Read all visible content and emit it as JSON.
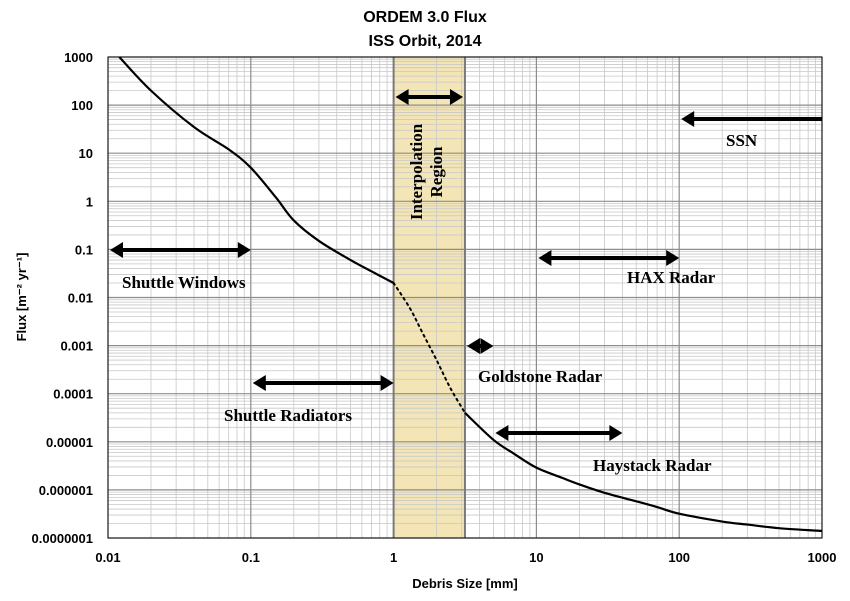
{
  "chart_data": {
    "type": "line",
    "title": "ORDEM 3.0 Flux",
    "subtitle": "ISS Orbit, 2014",
    "xlabel": "Debris Size [mm]",
    "ylabel": "Flux [m⁻² yr⁻¹]",
    "x_scale": "log",
    "y_scale": "log",
    "xlim": [
      0.01,
      1000
    ],
    "ylim": [
      1e-07,
      1000
    ],
    "grid": true,
    "x_ticks": [
      "0.01",
      "0.1",
      "1",
      "10",
      "100",
      "1000"
    ],
    "y_ticks": [
      "1000",
      "100",
      "10",
      "1",
      "0.1",
      "0.01",
      "0.001",
      "0.0001",
      "0.00001",
      "0.000001",
      "0.0000001"
    ],
    "series": [
      {
        "style": "solid",
        "x": [
          0.012,
          0.02,
          0.04,
          0.07,
          0.1,
          0.15,
          0.2,
          0.3,
          0.5,
          0.7,
          1.0
        ],
        "y": [
          1000,
          200,
          35,
          12,
          5,
          1.2,
          0.4,
          0.15,
          0.06,
          0.035,
          0.02
        ]
      },
      {
        "style": "dotted",
        "x": [
          1.0,
          1.3,
          1.6,
          2.0,
          2.5,
          3.16
        ],
        "y": [
          0.02,
          0.006,
          0.0018,
          0.0005,
          0.00013,
          4e-05
        ]
      },
      {
        "style": "solid",
        "x": [
          3.16,
          5,
          7,
          10,
          15,
          20,
          30,
          50,
          70,
          100,
          200,
          300,
          500,
          1000
        ],
        "y": [
          4e-05,
          1.1e-05,
          5.6e-06,
          2.9e-06,
          1.8e-06,
          1.3e-06,
          8.7e-07,
          5.8e-07,
          4.4e-07,
          3.2e-07,
          2.2e-07,
          1.9e-07,
          1.6e-07,
          1.4e-07
        ]
      }
    ],
    "shaded_region": {
      "label": "Interpolation Region",
      "x": [
        1.0,
        3.16
      ],
      "color": "#f3e5b5"
    },
    "annotations": [
      {
        "label": "SSN",
        "x": [
          100,
          1000
        ],
        "arrow": "left"
      },
      {
        "label": "Shuttle Windows",
        "x": [
          0.01,
          0.1
        ],
        "arrow": "both"
      },
      {
        "label": "HAX Radar",
        "x": [
          10,
          100
        ],
        "arrow": "both"
      },
      {
        "label": "Goldstone Radar",
        "x": [
          3.16,
          5
        ],
        "arrow": "both"
      },
      {
        "label": "Shuttle Radiators",
        "x": [
          0.1,
          1.0
        ],
        "arrow": "both"
      },
      {
        "label": "Haystack Radar",
        "x": [
          5,
          40
        ],
        "arrow": "both"
      }
    ]
  }
}
